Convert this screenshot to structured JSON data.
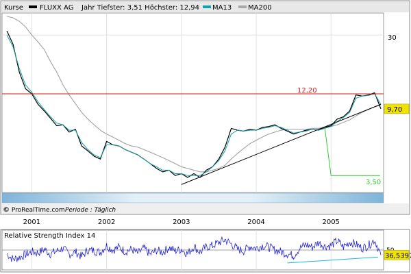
{
  "header": {
    "title": "Kurse",
    "instrument": "FLUXX AG",
    "range_text": "Jahr Tiefster: 3,51 Höchster: 12,94",
    "legend": [
      {
        "name": "MA13",
        "color": "#14a0a8"
      },
      {
        "name": "MA200",
        "color": "#a8a8a8"
      }
    ]
  },
  "footer": {
    "source": "© ProRealTime.com",
    "period_label": "Periode : Täglich"
  },
  "price_panel": {
    "resistance": {
      "value": 12.2,
      "label": "12,20",
      "color": "#d81818"
    },
    "support": {
      "value": 3.5,
      "label": "3,50",
      "color": "#33cc33"
    },
    "last": {
      "value": 9.7,
      "label": "9,70",
      "color": "#f2e200"
    },
    "axis_label": "30"
  },
  "rsi_panel": {
    "title": "Relative Strength Index 14",
    "level_label": "50",
    "last": {
      "value": 36.5397,
      "label": "36,5397",
      "color": "#f2e200"
    }
  },
  "chart_data": [
    {
      "type": "line",
      "title": "FLUXX AG",
      "x_ticks": [
        "2001",
        "2002",
        "2003",
        "2004",
        "2005"
      ],
      "y_scale": "log",
      "ylim": [
        2.7,
        42
      ],
      "y_ticks": [
        30
      ],
      "series": [
        {
          "name": "FLUXX AG",
          "x": [
            "2000-09",
            "2000-10",
            "2000-11",
            "2000-12",
            "2001-01",
            "2001-02",
            "2001-03",
            "2001-04",
            "2001-05",
            "2001-06",
            "2001-07",
            "2001-08",
            "2001-09",
            "2001-10",
            "2001-11",
            "2001-12",
            "2002-01",
            "2002-02",
            "2002-03",
            "2002-04",
            "2002-05",
            "2002-06",
            "2002-07",
            "2002-08",
            "2002-09",
            "2002-10",
            "2002-11",
            "2002-12",
            "2003-01",
            "2003-02",
            "2003-03",
            "2003-04",
            "2003-05",
            "2003-06",
            "2003-07",
            "2003-08",
            "2003-09",
            "2003-10",
            "2003-11",
            "2003-12",
            "2004-01",
            "2004-02",
            "2004-03",
            "2004-04",
            "2004-05",
            "2004-06",
            "2004-07",
            "2004-08",
            "2004-09",
            "2004-10",
            "2004-11",
            "2004-12",
            "2005-01",
            "2005-02",
            "2005-03",
            "2005-04",
            "2005-05",
            "2005-06",
            "2005-07",
            "2005-08",
            "2005-09"
          ],
          "values": [
            32,
            26,
            17,
            13.2,
            12.2,
            10.4,
            9.4,
            8.4,
            7.5,
            7.6,
            6.8,
            7.1,
            5.5,
            5.1,
            4.7,
            4.5,
            5.9,
            5.6,
            5.5,
            5.2,
            5.0,
            4.8,
            4.5,
            4.2,
            3.9,
            3.7,
            3.8,
            3.5,
            3.6,
            3.4,
            3.6,
            3.4,
            3.8,
            4.0,
            4.5,
            5.4,
            7.2,
            7.0,
            6.9,
            7.1,
            7.0,
            7.3,
            7.4,
            7.6,
            7.2,
            6.9,
            6.6,
            6.8,
            7.0,
            7.1,
            7.0,
            7.3,
            7.5,
            8.3,
            8.6,
            9.4,
            12.0,
            11.8,
            12.0,
            12.4,
            9.7
          ]
        },
        {
          "name": "MA13",
          "x": [
            "2000-09",
            "2000-10",
            "2000-11",
            "2000-12",
            "2001-01",
            "2001-02",
            "2001-03",
            "2001-04",
            "2001-05",
            "2001-06",
            "2001-07",
            "2001-08",
            "2001-09",
            "2001-10",
            "2001-11",
            "2001-12",
            "2002-01",
            "2002-02",
            "2002-03",
            "2002-04",
            "2002-05",
            "2002-06",
            "2002-07",
            "2002-08",
            "2002-09",
            "2002-10",
            "2002-11",
            "2002-12",
            "2003-01",
            "2003-02",
            "2003-03",
            "2003-04",
            "2003-05",
            "2003-06",
            "2003-07",
            "2003-08",
            "2003-09",
            "2003-10",
            "2003-11",
            "2003-12",
            "2004-01",
            "2004-02",
            "2004-03",
            "2004-04",
            "2004-05",
            "2004-06",
            "2004-07",
            "2004-08",
            "2004-09",
            "2004-10",
            "2004-11",
            "2004-12",
            "2005-01",
            "2005-02",
            "2005-03",
            "2005-04",
            "2005-05",
            "2005-06",
            "2005-07",
            "2005-08",
            "2005-09"
          ],
          "values": [
            30,
            25,
            18,
            14,
            12.5,
            10.8,
            9.6,
            8.6,
            7.8,
            7.6,
            7.0,
            7.0,
            5.8,
            5.2,
            4.8,
            4.6,
            5.6,
            5.6,
            5.5,
            5.2,
            5.0,
            4.8,
            4.5,
            4.2,
            4.0,
            3.8,
            3.8,
            3.6,
            3.6,
            3.5,
            3.5,
            3.5,
            3.7,
            4.0,
            4.4,
            5.1,
            6.6,
            7.0,
            6.9,
            7.0,
            7.0,
            7.2,
            7.3,
            7.5,
            7.3,
            7.0,
            6.7,
            6.8,
            6.9,
            7.1,
            7.0,
            7.2,
            7.4,
            8.0,
            8.5,
            9.2,
            11.4,
            11.8,
            11.9,
            12.2,
            10.4
          ]
        },
        {
          "name": "MA200",
          "x": [
            "2000-09",
            "2000-10",
            "2000-11",
            "2000-12",
            "2001-01",
            "2001-02",
            "2001-03",
            "2001-04",
            "2001-05",
            "2001-06",
            "2001-07",
            "2001-08",
            "2001-09",
            "2001-10",
            "2001-11",
            "2001-12",
            "2002-01",
            "2002-02",
            "2002-03",
            "2002-04",
            "2002-05",
            "2002-06",
            "2002-07",
            "2002-08",
            "2002-09",
            "2002-10",
            "2002-11",
            "2002-12",
            "2003-01",
            "2003-02",
            "2003-03",
            "2003-04",
            "2003-05",
            "2003-06",
            "2003-07",
            "2003-08",
            "2003-09",
            "2003-10",
            "2003-11",
            "2003-12",
            "2004-01",
            "2004-02",
            "2004-03",
            "2004-04",
            "2004-05",
            "2004-06",
            "2004-07",
            "2004-08",
            "2004-09",
            "2004-10",
            "2004-11",
            "2004-12",
            "2005-01",
            "2005-02",
            "2005-03",
            "2005-04",
            "2005-05",
            "2005-06",
            "2005-07",
            "2005-08",
            "2005-09"
          ],
          "values": [
            40,
            39,
            37,
            34,
            30,
            27,
            24,
            20,
            17,
            14,
            12,
            10.5,
            9.2,
            8.3,
            7.6,
            7.0,
            6.6,
            6.3,
            6.0,
            5.7,
            5.5,
            5.4,
            5.2,
            5.0,
            4.8,
            4.6,
            4.4,
            4.2,
            4.0,
            3.9,
            3.8,
            3.7,
            3.7,
            3.8,
            3.9,
            4.1,
            4.5,
            4.9,
            5.3,
            5.7,
            6.0,
            6.3,
            6.6,
            6.8,
            7.0,
            7.1,
            7.1,
            7.1,
            7.1,
            7.2,
            7.2,
            7.3,
            7.4,
            7.6,
            7.9,
            8.2,
            8.7,
            9.2,
            9.6,
            10.0,
            10.3
          ]
        }
      ]
    },
    {
      "type": "line",
      "title": "Relative Strength Index 14",
      "ylim": [
        0,
        100
      ],
      "y_ticks": [
        50
      ],
      "series": [
        {
          "name": "Relative Strength Index 14",
          "x": [
            "2000-09",
            "2000-10",
            "2000-11",
            "2000-12",
            "2001-01",
            "2001-02",
            "2001-03",
            "2001-04",
            "2001-05",
            "2001-06",
            "2001-07",
            "2001-08",
            "2001-09",
            "2001-10",
            "2001-11",
            "2001-12",
            "2002-01",
            "2002-02",
            "2002-03",
            "2002-04",
            "2002-05",
            "2002-06",
            "2002-07",
            "2002-08",
            "2002-09",
            "2002-10",
            "2002-11",
            "2002-12",
            "2003-01",
            "2003-02",
            "2003-03",
            "2003-04",
            "2003-05",
            "2003-06",
            "2003-07",
            "2003-08",
            "2003-09",
            "2003-10",
            "2003-11",
            "2003-12",
            "2004-01",
            "2004-02",
            "2004-03",
            "2004-04",
            "2004-05",
            "2004-06",
            "2004-07",
            "2004-08",
            "2004-09",
            "2004-10",
            "2004-11",
            "2004-12",
            "2005-01",
            "2005-02",
            "2005-03",
            "2005-04",
            "2005-05",
            "2005-06",
            "2005-07",
            "2005-08",
            "2005-09"
          ],
          "values": [
            40,
            25,
            30,
            38,
            45,
            42,
            52,
            40,
            47,
            55,
            38,
            45,
            32,
            50,
            48,
            44,
            62,
            50,
            58,
            46,
            52,
            41,
            55,
            38,
            49,
            44,
            57,
            48,
            52,
            40,
            60,
            44,
            58,
            62,
            70,
            78,
            66,
            52,
            48,
            60,
            55,
            62,
            58,
            50,
            45,
            40,
            35,
            55,
            65,
            58,
            70,
            60,
            62,
            75,
            58,
            72,
            65,
            55,
            62,
            78,
            36.5397
          ]
        }
      ]
    }
  ]
}
